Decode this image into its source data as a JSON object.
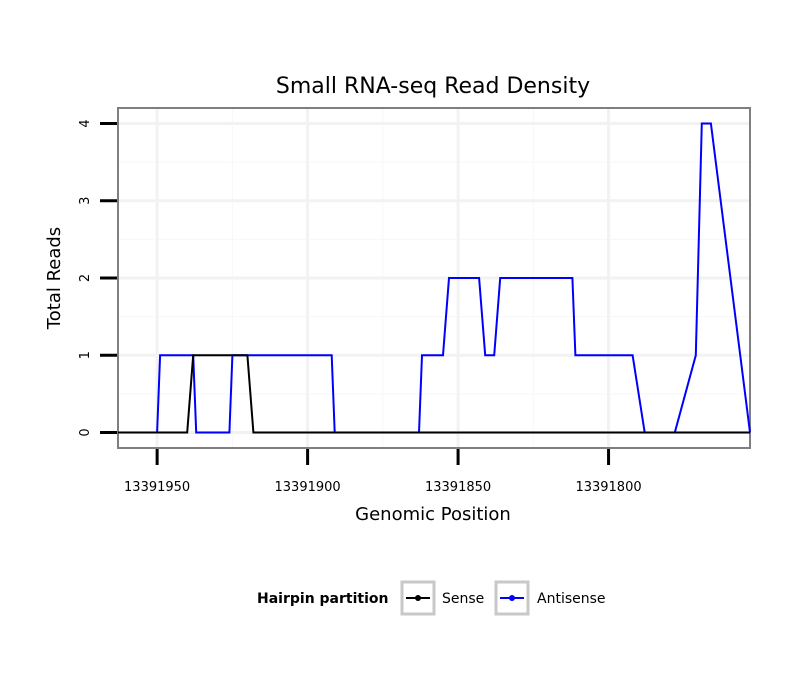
{
  "chart_data": {
    "type": "line",
    "title": "Small RNA-seq Read Density",
    "xlabel": "Genomic Position",
    "ylabel": "Total Reads",
    "xlim": [
      13391963,
      13391753
    ],
    "ylim": [
      -0.2,
      4.2
    ],
    "x_reversed": true,
    "xticks": [
      13391950,
      13391900,
      13391850,
      13391800
    ],
    "xtick_labels": [
      "13391950",
      "13391900",
      "13391850",
      "13391800"
    ],
    "yticks": [
      0,
      1,
      2,
      3,
      4
    ],
    "ytick_labels": [
      "0",
      "1",
      "2",
      "3",
      "4"
    ],
    "grid": true,
    "legend": {
      "title": "Hairpin partition",
      "placement": "bottom",
      "entries": [
        "Sense",
        "Antisense"
      ]
    },
    "series": [
      {
        "name": "Sense",
        "color": "#000000",
        "x": [
          13391963,
          13391940,
          13391938,
          13391920,
          13391918,
          13391753
        ],
        "y": [
          0,
          0,
          1,
          1,
          0,
          0
        ]
      },
      {
        "name": "Antisense",
        "color": "#0000ff",
        "x": [
          13391963,
          13391950,
          13391949,
          13391938,
          13391937,
          13391926,
          13391925,
          13391892,
          13391891,
          13391863,
          13391862,
          13391855,
          13391853,
          13391843,
          13391841,
          13391838,
          13391836,
          13391812,
          13391811,
          13391792,
          13391788,
          13391778,
          13391771,
          13391769,
          13391766,
          13391753
        ],
        "y": [
          0,
          0,
          1,
          1,
          0,
          0,
          1,
          1,
          0,
          0,
          1,
          1,
          2,
          2,
          1,
          1,
          2,
          2,
          1,
          1,
          0,
          0,
          1,
          4,
          4,
          0
        ]
      }
    ]
  }
}
